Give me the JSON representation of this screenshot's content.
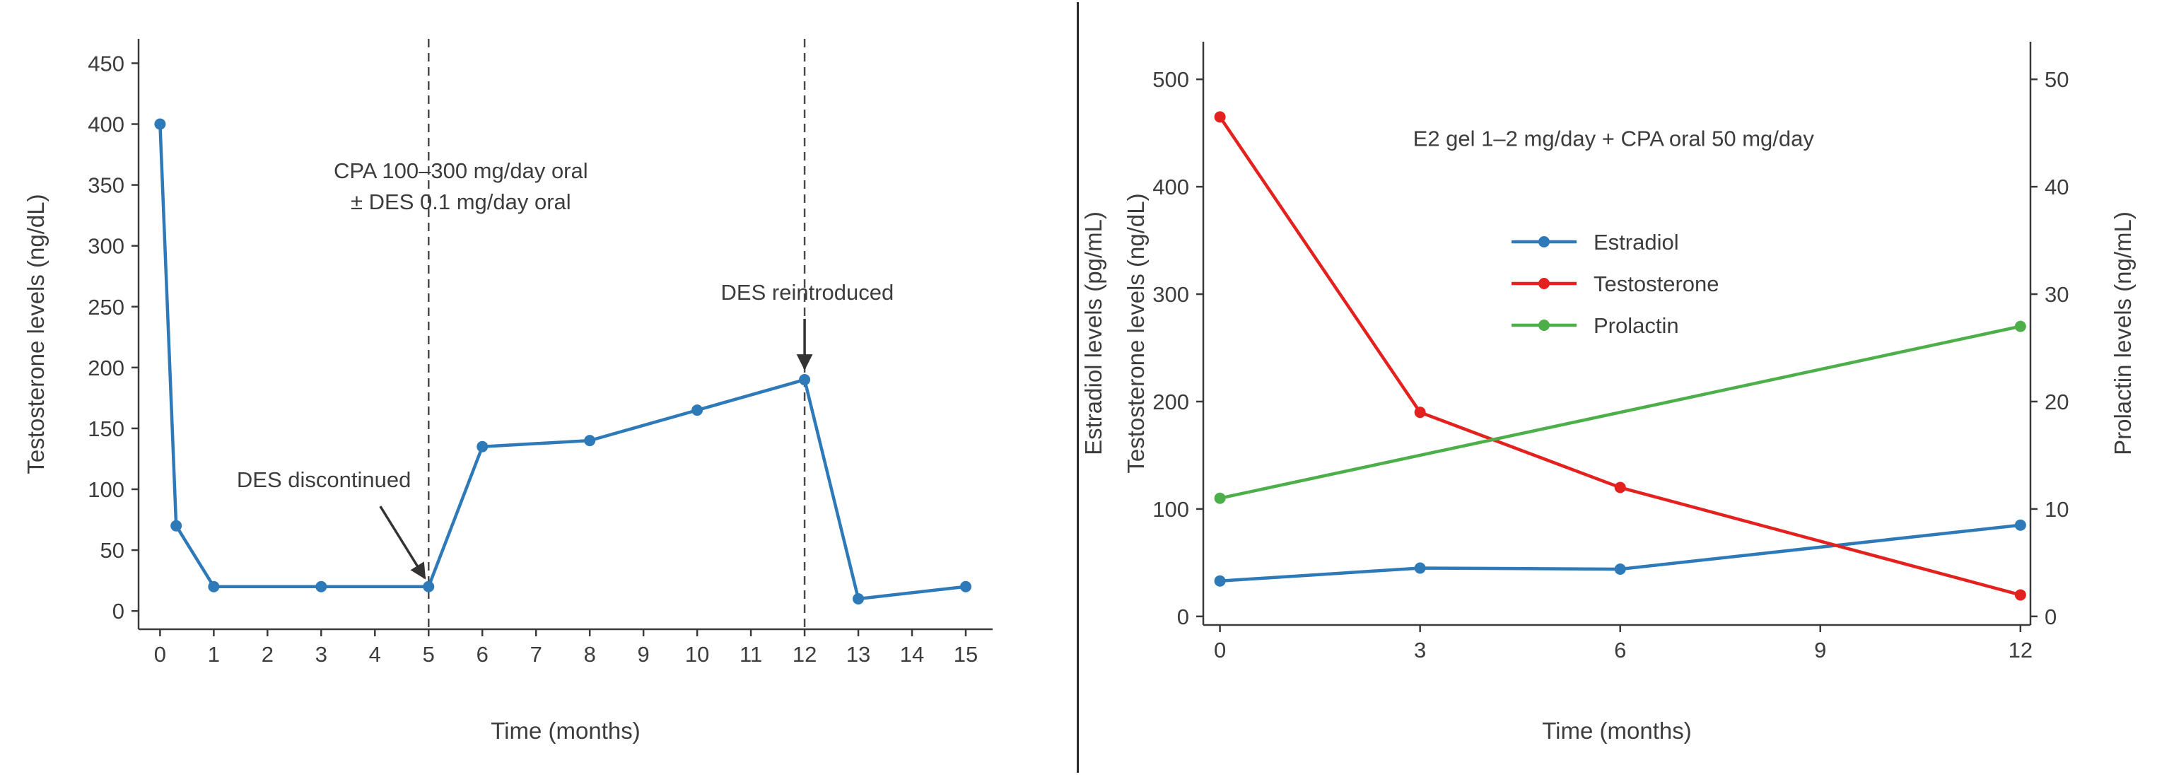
{
  "figure": {
    "background": "#ffffff",
    "divider_color": "#2b2b2b"
  },
  "style": {
    "axis_color": "#3a3a3a",
    "text_color": "#3d3d3d",
    "dash_color": "#4a4a4a",
    "arrow_color": "#333333"
  },
  "chart_data": [
    {
      "id": "cpa-des-monotherapy",
      "type": "line",
      "title": "",
      "xlabel": "Time (months)",
      "ylabel": "Testosterone levels (ng/dL)",
      "xlim": [
        -0.4,
        15.5
      ],
      "ylim": [
        -15,
        470
      ],
      "xticks": [
        0,
        1,
        2,
        3,
        4,
        5,
        6,
        7,
        8,
        9,
        10,
        11,
        12,
        13,
        14,
        15
      ],
      "yticks": [
        0,
        50,
        100,
        150,
        200,
        250,
        300,
        350,
        400,
        450
      ],
      "grid": false,
      "legend": false,
      "series": [
        {
          "name": "Testosterone",
          "color": "#2E79B8",
          "marker": "circle",
          "x": [
            0,
            0.3,
            1,
            3,
            5,
            6,
            8,
            10,
            12,
            13,
            15
          ],
          "y": [
            400,
            70,
            20,
            20,
            20,
            135,
            140,
            165,
            190,
            10,
            20
          ]
        }
      ],
      "vlines": [
        {
          "x": 5,
          "style": "dashed"
        },
        {
          "x": 12,
          "style": "dashed"
        }
      ],
      "annotations": [
        {
          "text": "CPA 100–300 mg/day oral\n± DES 0.1 mg/day oral",
          "x": 5.6,
          "y": 362
        },
        {
          "text": "DES discontinued",
          "x": 3.05,
          "y": 108,
          "arrow": {
            "from": [
              4.1,
              86
            ],
            "to": [
              4.93,
              27
            ]
          }
        },
        {
          "text": "DES reintroduced",
          "x": 12.05,
          "y": 262,
          "arrow": {
            "from": [
              12,
              240
            ],
            "to": [
              12,
              199
            ]
          }
        }
      ]
    },
    {
      "id": "e2-gel-plus-cpa",
      "type": "line",
      "title": "",
      "xlabel": "Time (months)",
      "ylabel_lines": [
        "Estradiol levels (pg/mL)",
        "Testosterone levels (ng/dL)"
      ],
      "ylabel_right": "Prolactin levels (ng/mL)",
      "xlim": [
        -0.25,
        12.15
      ],
      "ylim": [
        -8,
        535
      ],
      "ylim_right": [
        -0.8,
        53.5
      ],
      "xticks": [
        0,
        3,
        6,
        9,
        12
      ],
      "yticks": [
        0,
        100,
        200,
        300,
        400,
        500
      ],
      "yticks_right": [
        0,
        10,
        20,
        30,
        40,
        50
      ],
      "grid": false,
      "legend": true,
      "series": [
        {
          "name": "Estradiol",
          "color": "#2E79B8",
          "marker": "circle",
          "x": [
            0,
            3,
            6,
            12
          ],
          "y": [
            33,
            45,
            44,
            85
          ]
        },
        {
          "name": "Testosterone",
          "color": "#E3211E",
          "marker": "circle",
          "x": [
            0,
            3,
            6,
            12
          ],
          "y": [
            465,
            190,
            120,
            20
          ]
        },
        {
          "name": "Prolactin",
          "color": "#4DAF4A",
          "marker": "circle",
          "axis": "right",
          "x": [
            0,
            12
          ],
          "y": [
            11,
            27
          ]
        }
      ],
      "vlines": [],
      "annotations": [
        {
          "text": "E2 gel 1–2 mg/day + CPA oral 50 mg/day",
          "x": 5.9,
          "y": 445
        }
      ]
    }
  ]
}
